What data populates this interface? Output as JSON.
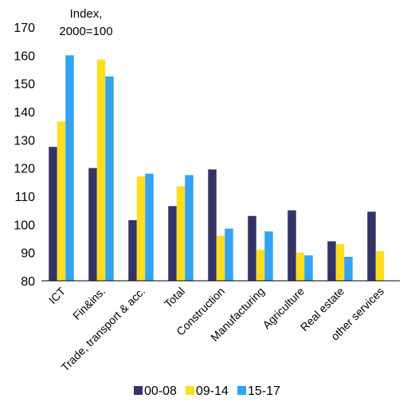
{
  "chart_data": {
    "type": "bar",
    "ylabel_lines": [
      "Index,",
      "2000=100"
    ],
    "ylim": [
      80,
      170
    ],
    "yticks": [
      80,
      90,
      100,
      110,
      120,
      130,
      140,
      150,
      160,
      170
    ],
    "categories": [
      "ICT",
      "Fin&ins.",
      "Trade, transport & acc.",
      "Total",
      "Construction",
      "Manufacturing",
      "Agriculture",
      "Real estate",
      "other services"
    ],
    "series": [
      {
        "name": "00-08",
        "color": "#333366",
        "values": [
          127.5,
          120,
          101.5,
          106.5,
          119.5,
          103,
          105,
          94,
          104.5
        ]
      },
      {
        "name": "09-14",
        "color": "#ffde21",
        "values": [
          136.5,
          158.5,
          117,
          113.5,
          96,
          91,
          90,
          93,
          90.5
        ]
      },
      {
        "name": "15-17",
        "color": "#33a3f2",
        "values": [
          160,
          152.5,
          118,
          117.5,
          98.5,
          97.5,
          89,
          88.5,
          null
        ]
      }
    ],
    "legend": "bottom",
    "grid": false
  }
}
